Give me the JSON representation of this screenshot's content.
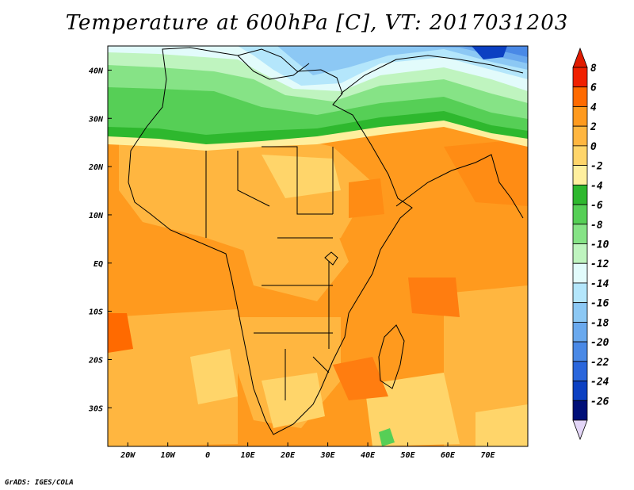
{
  "title": "Temperature at 600hPa [C], VT: 2017031203",
  "credit": "GrADS: IGES/COLA",
  "map": {
    "lon_range": [
      -25,
      80
    ],
    "lat_range": [
      -38,
      45
    ],
    "lon_ticks": [
      {
        "value": -20,
        "label": "20W"
      },
      {
        "value": -10,
        "label": "10W"
      },
      {
        "value": 0,
        "label": "0"
      },
      {
        "value": 10,
        "label": "10E"
      },
      {
        "value": 20,
        "label": "20E"
      },
      {
        "value": 30,
        "label": "30E"
      },
      {
        "value": 40,
        "label": "40E"
      },
      {
        "value": 50,
        "label": "50E"
      },
      {
        "value": 60,
        "label": "60E"
      },
      {
        "value": 70,
        "label": "70E"
      }
    ],
    "lat_ticks": [
      {
        "value": 40,
        "label": "40N"
      },
      {
        "value": 30,
        "label": "30N"
      },
      {
        "value": 20,
        "label": "20N"
      },
      {
        "value": 10,
        "label": "10N"
      },
      {
        "value": 0,
        "label": "EQ"
      },
      {
        "value": -10,
        "label": "10S"
      },
      {
        "value": -20,
        "label": "20S"
      },
      {
        "value": -30,
        "label": "30S"
      }
    ]
  },
  "colorbar": {
    "labels": [
      "8",
      "6",
      "4",
      "2",
      "0",
      "-2",
      "-4",
      "-6",
      "-8",
      "-10",
      "-12",
      "-14",
      "-16",
      "-18",
      "-20",
      "-22",
      "-24",
      "-26"
    ],
    "colors": [
      "#f02000",
      "#ff6a00",
      "#ff9a1e",
      "#ffb640",
      "#ffd56a",
      "#ffef9e",
      "#2eb82e",
      "#56cf56",
      "#86e386",
      "#bff4bf",
      "#e2fbfb",
      "#b4e6fb",
      "#8cc8f4",
      "#6aa9ee",
      "#4a89e6",
      "#2a66dc",
      "#0c40c2",
      "#000f78"
    ],
    "top_arrow": "#e11b00",
    "bottom_arrow": "#e3d6f7"
  }
}
